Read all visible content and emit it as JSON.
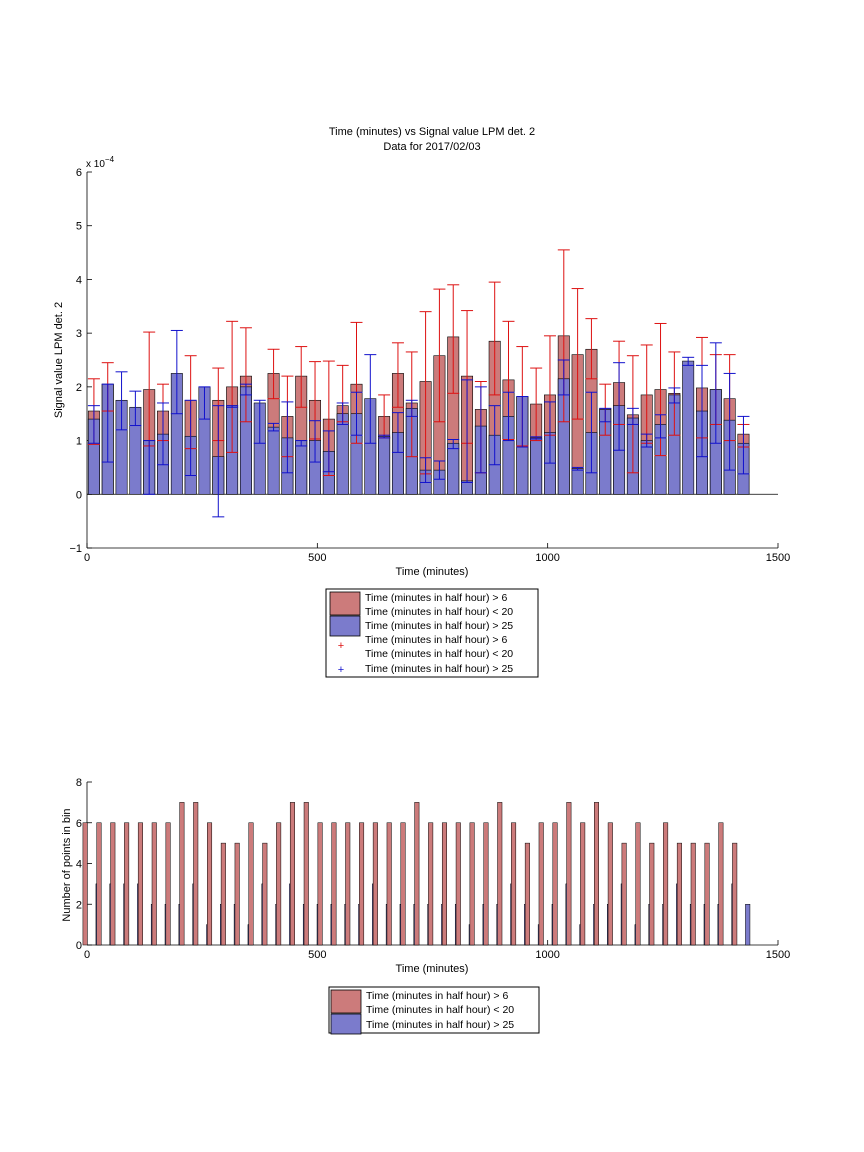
{
  "colors": {
    "red_fill": "#cc7b7b",
    "blue_fill": "#7b7bcc",
    "red_err": "#dd1111",
    "blue_err": "#1111cc"
  },
  "top": {
    "title_line1": "Time (minutes) vs Signal value LPM det. 2",
    "title_line2": "Data for 2017/02/03",
    "exponent": "x 10",
    "exponent_power": "−4",
    "xlabel": "Time (minutes)",
    "ylabel": "Signal value LPM det. 2",
    "legend": {
      "red_bar": [
        "Time (minutes in half hour) > 6",
        "Time (minutes in half hour) < 20"
      ],
      "blue_bar": [
        "Time (minutes in half hour) > 25"
      ],
      "red_err": [
        "Time (minutes in half hour) > 6",
        "Time (minutes in half hour) < 20"
      ],
      "blue_err": [
        "Time (minutes in half hour) > 25"
      ]
    }
  },
  "bottom": {
    "xlabel": "Time (minutes)",
    "ylabel": "Number of points in bin",
    "legend": {
      "red_bar": [
        "Time (minutes in half hour) > 6",
        "Time (minutes in half hour) < 20"
      ],
      "blue_bar": [
        "Time (minutes in half hour) > 25"
      ]
    }
  },
  "chart_data": [
    {
      "type": "bar",
      "title": "Time (minutes) vs Signal value LPM det. 2 / Data for 2017/02/03",
      "xlabel": "Time (minutes)",
      "ylabel": "Signal value LPM det. 2",
      "y_scale_note": "x 10^-4",
      "xlim": [
        0,
        1500
      ],
      "ylim": [
        -1,
        6
      ],
      "xticks": [
        0,
        500,
        1000,
        1500
      ],
      "yticks": [
        -1,
        0,
        1,
        2,
        3,
        4,
        5,
        6
      ],
      "x": [
        15,
        45,
        75,
        105,
        135,
        165,
        195,
        225,
        255,
        285,
        315,
        345,
        375,
        405,
        435,
        465,
        495,
        525,
        555,
        585,
        615,
        645,
        675,
        705,
        735,
        765,
        795,
        825,
        855,
        885,
        915,
        945,
        975,
        1005,
        1035,
        1065,
        1095,
        1125,
        1155,
        1185,
        1215,
        1245,
        1275,
        1305,
        1335,
        1365,
        1395,
        1425
      ],
      "series": [
        {
          "name": "Time (minutes in half hour) > 6 Time (minutes in half hour) < 20",
          "values": [
            1.55,
            2.05,
            null,
            null,
            1.95,
            1.55,
            null,
            1.75,
            null,
            1.75,
            2.0,
            2.2,
            null,
            2.25,
            1.45,
            2.2,
            1.75,
            1.4,
            1.65,
            2.05,
            null,
            1.45,
            2.25,
            1.7,
            2.1,
            2.58,
            2.93,
            2.2,
            1.58,
            2.85,
            2.13,
            1.82,
            1.68,
            1.85,
            2.95,
            2.6,
            2.7,
            1.6,
            2.08,
            1.48,
            1.85,
            1.95,
            1.88,
            null,
            1.98,
            1.95,
            1.78,
            1.12
          ],
          "err_low": [
            0.93,
            1.55,
            null,
            null,
            0.9,
            1.0,
            null,
            0.85,
            null,
            1.0,
            0.78,
            1.35,
            null,
            1.78,
            0.7,
            1.62,
            1.03,
            0.35,
            1.35,
            0.95,
            null,
            1.05,
            1.62,
            0.7,
            0.38,
            1.35,
            1.88,
            0.95,
            0.4,
            1.85,
            1.02,
            0.9,
            1.0,
            1.1,
            1.35,
            1.4,
            2.15,
            1.1,
            1.3,
            0.4,
            0.95,
            0.72,
            1.1,
            null,
            1.05,
            1.3,
            1.0,
            0.88
          ],
          "err_high": [
            2.15,
            2.45,
            null,
            null,
            3.02,
            2.05,
            null,
            2.58,
            null,
            2.35,
            3.22,
            3.1,
            null,
            2.7,
            2.2,
            2.75,
            2.47,
            2.48,
            2.4,
            3.2,
            null,
            1.85,
            2.82,
            2.65,
            3.4,
            3.82,
            3.9,
            3.42,
            2.1,
            3.95,
            3.22,
            2.75,
            2.35,
            2.95,
            4.55,
            3.83,
            3.27,
            2.05,
            2.85,
            2.58,
            2.78,
            3.18,
            2.65,
            null,
            2.92,
            2.6,
            2.6,
            1.3
          ]
        },
        {
          "name": "Time (minutes in half hour) > 25",
          "values": [
            1.4,
            2.05,
            1.75,
            1.62,
            1.0,
            1.12,
            2.25,
            1.08,
            2.0,
            0.7,
            1.65,
            2.0,
            1.7,
            1.25,
            1.05,
            1.0,
            1.0,
            0.8,
            1.5,
            1.5,
            1.78,
            1.08,
            1.15,
            1.6,
            0.45,
            0.45,
            0.95,
            0.25,
            1.27,
            1.1,
            1.45,
            1.82,
            1.05,
            1.15,
            2.15,
            0.48,
            1.15,
            1.58,
            1.65,
            1.42,
            1.0,
            1.3,
            1.85,
            2.48,
            1.55,
            1.95,
            1.38,
            0.95
          ],
          "err_low": [
            0.95,
            0.6,
            1.2,
            1.28,
            0.0,
            0.55,
            1.5,
            0.35,
            1.4,
            -0.42,
            1.62,
            1.85,
            0.95,
            1.18,
            0.4,
            0.9,
            0.6,
            0.42,
            1.3,
            1.1,
            0.95,
            1.05,
            0.78,
            1.45,
            0.22,
            0.28,
            0.85,
            0.22,
            0.4,
            0.55,
            1.0,
            0.88,
            1.03,
            0.58,
            1.85,
            0.45,
            0.4,
            1.35,
            0.82,
            1.3,
            0.88,
            1.05,
            1.7,
            2.4,
            0.7,
            0.95,
            0.45,
            0.38
          ],
          "err_high": [
            1.65,
            2.05,
            2.28,
            1.92,
            1.0,
            1.7,
            3.05,
            1.75,
            2.0,
            1.65,
            1.65,
            2.05,
            1.75,
            1.32,
            1.72,
            1.0,
            1.37,
            1.18,
            1.7,
            1.9,
            2.6,
            1.1,
            1.52,
            1.75,
            0.68,
            0.62,
            1.02,
            2.13,
            2.0,
            1.65,
            1.9,
            1.82,
            1.07,
            1.72,
            2.5,
            0.5,
            1.9,
            1.6,
            2.45,
            1.6,
            1.12,
            1.48,
            1.98,
            2.55,
            2.4,
            2.82,
            2.25,
            1.45
          ]
        }
      ],
      "legend_position": "below"
    },
    {
      "type": "bar",
      "xlabel": "Time (minutes)",
      "ylabel": "Number of points in bin",
      "xlim": [
        0,
        1500
      ],
      "ylim": [
        0,
        8
      ],
      "xticks": [
        0,
        500,
        1000,
        1500
      ],
      "yticks": [
        0,
        2,
        4,
        6,
        8
      ],
      "x": [
        15,
        45,
        75,
        105,
        135,
        165,
        195,
        225,
        255,
        285,
        315,
        345,
        375,
        405,
        435,
        465,
        495,
        525,
        555,
        585,
        615,
        645,
        675,
        705,
        735,
        765,
        795,
        825,
        855,
        885,
        915,
        945,
        975,
        1005,
        1035,
        1065,
        1095,
        1125,
        1155,
        1185,
        1215,
        1245,
        1275,
        1305,
        1335,
        1365,
        1395,
        1425
      ],
      "series": [
        {
          "name": "Time (minutes in half hour) > 6 Time (minutes in half hour) < 20",
          "values": [
            6,
            6,
            6,
            6,
            6,
            6,
            6,
            7,
            7,
            6,
            5,
            5,
            6,
            5,
            6,
            7,
            7,
            6,
            6,
            6,
            6,
            6,
            6,
            6,
            7,
            6,
            6,
            6,
            6,
            6,
            7,
            6,
            5,
            6,
            6,
            7,
            6,
            7,
            6,
            5,
            6,
            5,
            6,
            5,
            5,
            5,
            6,
            5
          ]
        },
        {
          "name": "Time (minutes in half hour) > 25",
          "values": [
            3,
            3,
            3,
            3,
            2,
            2,
            2,
            3,
            1,
            2,
            2,
            1,
            3,
            2,
            3,
            2,
            2,
            2,
            2,
            2,
            3,
            2,
            2,
            2,
            2,
            2,
            2,
            1,
            2,
            2,
            3,
            2,
            1,
            2,
            3,
            1,
            2,
            2,
            3,
            1,
            2,
            2,
            3,
            2,
            2,
            2,
            3,
            2
          ]
        }
      ],
      "legend_position": "below"
    }
  ]
}
